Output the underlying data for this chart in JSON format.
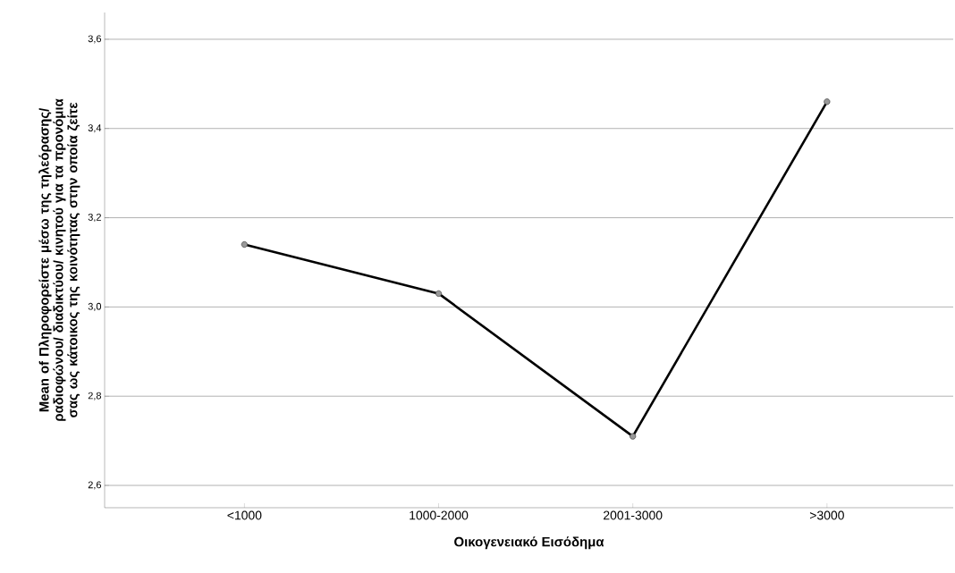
{
  "chart_data": {
    "type": "line",
    "xlabel": "Οικογενειακό Εισόδημα",
    "ylabel": "Mean of Πληροφορείστε μέσω της τηλεόρασης/ ραδιοφώνου/ διαδικτύου/ κινητού για τα προνόμια σας ως κάτοικος της κοινότητας στην οποία ζείτε",
    "categories": [
      "<1000",
      "1000-2000",
      "2001-3000",
      ">3000"
    ],
    "series": [
      {
        "color": "#000000",
        "values": [
          3.14,
          3.03,
          2.71,
          3.46
        ]
      }
    ],
    "ylim": [
      2.55,
      3.66
    ],
    "yticks": [
      {
        "value": 2.6,
        "label": "2,6"
      },
      {
        "value": 2.8,
        "label": "2,8"
      },
      {
        "value": 3.0,
        "label": "3,0"
      },
      {
        "value": 3.2,
        "label": "3,2"
      },
      {
        "value": 3.4,
        "label": "3,4"
      },
      {
        "value": 3.6,
        "label": "3,6"
      }
    ],
    "grid": "y",
    "marker": "circle",
    "line_style": "solid"
  }
}
